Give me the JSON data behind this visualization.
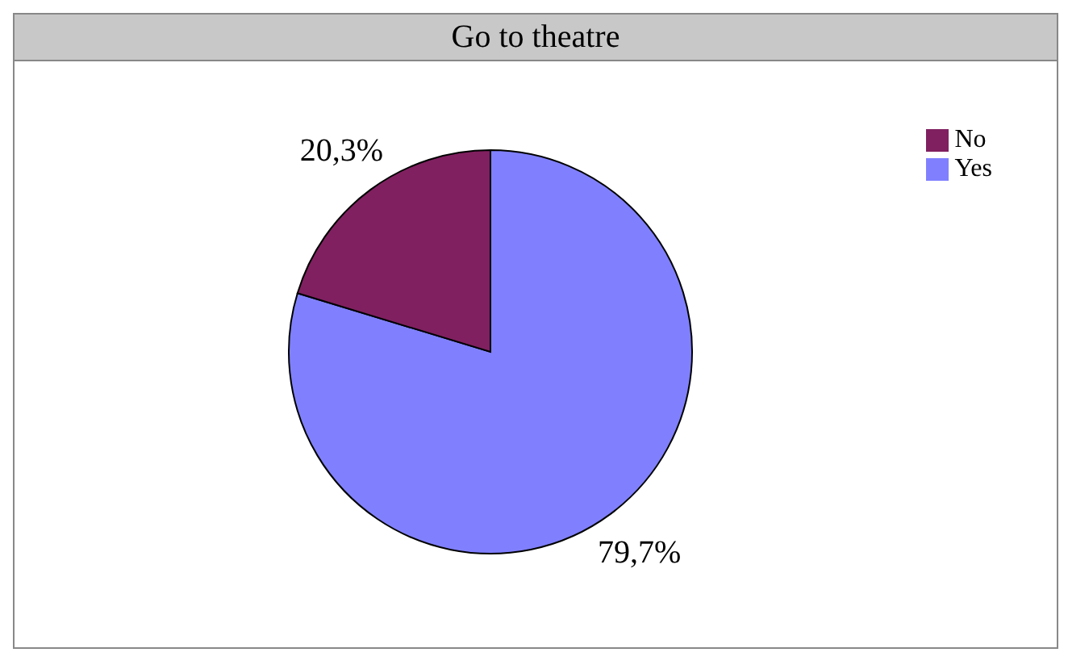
{
  "chart_data": {
    "type": "pie",
    "title": "Go to theatre",
    "categories": [
      "Yes",
      "No"
    ],
    "values": [
      79.7,
      20.3
    ],
    "colors": [
      "#8080ff",
      "#802060"
    ],
    "value_labels": [
      "79,7%",
      "20,3%"
    ],
    "legend": "top right"
  }
}
